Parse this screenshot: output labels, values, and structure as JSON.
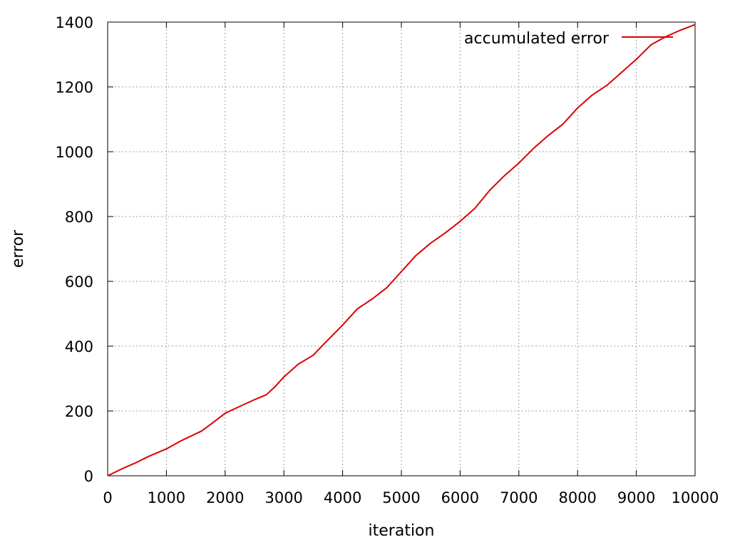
{
  "chart_data": {
    "type": "line",
    "title": "",
    "xlabel": "iteration",
    "ylabel": "error",
    "xlim": [
      0,
      10000
    ],
    "ylim": [
      0,
      1400
    ],
    "x_ticks": [
      "0",
      "1000",
      "2000",
      "3000",
      "4000",
      "5000",
      "6000",
      "7000",
      "8000",
      "9000",
      "10000"
    ],
    "y_ticks": [
      "0",
      "200",
      "400",
      "600",
      "800",
      "1000",
      "1200",
      "1400"
    ],
    "grid": true,
    "legend_position": "top-right",
    "series": [
      {
        "name": "accumulated error",
        "color": "#dd0000",
        "x": [
          0,
          250,
          500,
          700,
          1000,
          1250,
          1600,
          1800,
          2000,
          2200,
          2500,
          2700,
          2850,
          3000,
          3250,
          3500,
          3700,
          4000,
          4250,
          4500,
          4750,
          5000,
          5250,
          5500,
          5750,
          6000,
          6250,
          6500,
          6750,
          7000,
          7250,
          7500,
          7750,
          8000,
          8250,
          8500,
          8750,
          9000,
          9250,
          9500,
          9750,
          10000
        ],
        "y": [
          0,
          22,
          42,
          60,
          83,
          108,
          138,
          165,
          193,
          210,
          235,
          250,
          275,
          305,
          345,
          372,
          410,
          465,
          515,
          545,
          580,
          630,
          680,
          718,
          750,
          785,
          825,
          880,
          925,
          965,
          1010,
          1050,
          1085,
          1135,
          1175,
          1205,
          1245,
          1285,
          1330,
          1355,
          1375,
          1392
        ]
      }
    ]
  }
}
